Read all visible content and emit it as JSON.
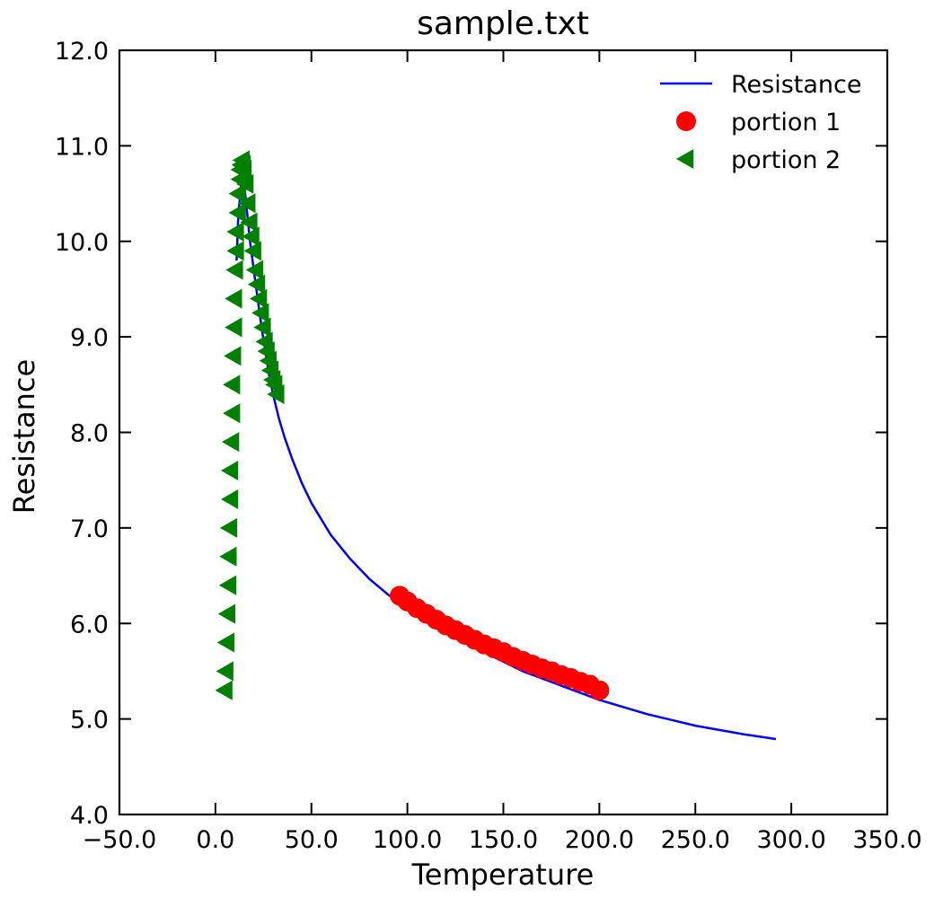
{
  "chart_data": {
    "type": "scatter",
    "title": "sample.txt",
    "xlabel": "Temperature",
    "ylabel": "Resistance",
    "xlim": [
      -50,
      350
    ],
    "ylim": [
      4,
      12
    ],
    "grid": false,
    "legend_position": "top-right",
    "x_ticks": [
      -50,
      0,
      50,
      100,
      150,
      200,
      250,
      300,
      350
    ],
    "y_ticks": [
      4,
      5,
      6,
      7,
      8,
      9,
      10,
      11,
      12
    ],
    "x_tick_labels": [
      "−50.0",
      "0.0",
      "50.0",
      "100.0",
      "150.0",
      "200.0",
      "250.0",
      "300.0",
      "350.0"
    ],
    "y_tick_labels": [
      "4.0",
      "5.0",
      "6.0",
      "7.0",
      "8.0",
      "9.0",
      "10.0",
      "11.0",
      "12.0"
    ],
    "series": [
      {
        "name": "Resistance",
        "type": "line",
        "color": "#0000ff",
        "x": [
          11,
          12,
          14,
          15,
          16,
          17,
          18,
          20,
          22,
          24,
          26,
          28,
          30,
          33,
          36,
          40,
          45,
          50,
          60,
          70,
          80,
          90,
          100,
          110,
          125,
          140,
          160,
          180,
          200,
          225,
          250,
          275,
          292
        ],
        "y": [
          9.8,
          10.3,
          10.7,
          10.6,
          10.4,
          10.2,
          10.0,
          9.7,
          9.4,
          9.1,
          8.85,
          8.6,
          8.4,
          8.15,
          7.95,
          7.72,
          7.47,
          7.26,
          6.93,
          6.68,
          6.47,
          6.3,
          6.16,
          6.03,
          5.85,
          5.7,
          5.5,
          5.35,
          5.2,
          5.05,
          4.93,
          4.84,
          4.79
        ]
      },
      {
        "name": "portion 1",
        "type": "scatter",
        "marker": "circle",
        "color": "#ff0000",
        "x": [
          96,
          100,
          105,
          110,
          115,
          120,
          125,
          130,
          135,
          140,
          145,
          150,
          155,
          160,
          165,
          170,
          175,
          180,
          185,
          190,
          195,
          200
        ],
        "y": [
          6.29,
          6.23,
          6.16,
          6.1,
          6.04,
          5.98,
          5.93,
          5.88,
          5.83,
          5.78,
          5.74,
          5.7,
          5.65,
          5.61,
          5.57,
          5.53,
          5.5,
          5.46,
          5.43,
          5.39,
          5.36,
          5.3
        ]
      },
      {
        "name": "portion 2",
        "type": "scatter",
        "marker": "triangle-left",
        "color": "#008000",
        "x": [
          5,
          5.5,
          6,
          6.5,
          7,
          7.2,
          7.5,
          8,
          8,
          8.5,
          9,
          9,
          9.5,
          10,
          10,
          10.5,
          11,
          11,
          12,
          12,
          13,
          13,
          13.5,
          14,
          14.5,
          15,
          16,
          17,
          18,
          19,
          20,
          21,
          22,
          23,
          24,
          25,
          26,
          27,
          28,
          29,
          30,
          31,
          32
        ],
        "y": [
          5.3,
          5.5,
          5.8,
          6.1,
          6.4,
          6.7,
          7.0,
          7.3,
          7.6,
          7.9,
          8.2,
          8.5,
          8.8,
          9.1,
          9.4,
          9.7,
          9.9,
          10.1,
          10.3,
          10.5,
          10.65,
          10.75,
          10.8,
          10.85,
          10.8,
          10.75,
          10.6,
          10.4,
          10.2,
          10.05,
          9.9,
          9.7,
          9.55,
          9.4,
          9.25,
          9.1,
          8.95,
          8.85,
          8.75,
          8.65,
          8.55,
          8.5,
          8.4
        ]
      }
    ]
  }
}
